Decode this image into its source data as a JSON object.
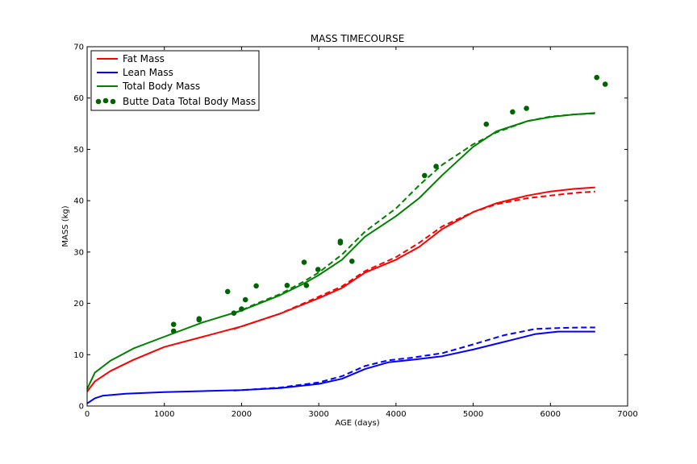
{
  "chart_data": {
    "type": "line",
    "title": "MASS TIMECOURSE",
    "xlabel": "AGE (days)",
    "ylabel": "MASS (kg)",
    "xlim": [
      0,
      7000
    ],
    "ylim": [
      0,
      70
    ],
    "xticks": [
      "0",
      "1000",
      "2000",
      "3000",
      "4000",
      "5000",
      "6000",
      "7000"
    ],
    "yticks": [
      "0",
      "10",
      "20",
      "30",
      "40",
      "50",
      "60",
      "70"
    ],
    "grid": false,
    "legend_position": "top-left",
    "legend": [
      {
        "label": "Fat Mass",
        "color": "#ff0000",
        "kind": "line"
      },
      {
        "label": "Lean Mass",
        "color": "#0000ff",
        "kind": "line"
      },
      {
        "label": "Total Body Mass",
        "color": "#008000",
        "kind": "line"
      },
      {
        "label": "Butte Data Total Body Mass",
        "color": "#006400",
        "kind": "points"
      }
    ],
    "series": [
      {
        "name": "Fat Mass",
        "color": "#ff0000",
        "style": "solid",
        "x": [
          0,
          100,
          300,
          600,
          1000,
          1500,
          2000,
          2500,
          3000,
          3300,
          3600,
          4000,
          4300,
          4600,
          5000,
          5300,
          5700,
          6000,
          6300,
          6580
        ],
        "y": [
          2.8,
          4.8,
          6.8,
          9.0,
          11.5,
          13.5,
          15.5,
          18.0,
          21.0,
          23.0,
          26.0,
          28.5,
          31.0,
          34.5,
          37.8,
          39.5,
          41.0,
          41.8,
          42.3,
          42.6
        ]
      },
      {
        "name": "Fat Mass (dashed)",
        "color": "#ff0000",
        "style": "dashed",
        "x": [
          1900,
          2500,
          3000,
          3300,
          3600,
          4000,
          4300,
          4600,
          5000,
          5300,
          5700,
          6000,
          6300,
          6580
        ],
        "y": [
          15.0,
          18.0,
          21.3,
          23.3,
          26.3,
          29.0,
          31.8,
          35.0,
          37.8,
          39.3,
          40.5,
          41.0,
          41.5,
          41.8
        ]
      },
      {
        "name": "Lean Mass",
        "color": "#0000ff",
        "style": "solid",
        "x": [
          0,
          100,
          200,
          500,
          1000,
          1500,
          2000,
          2500,
          3000,
          3300,
          3600,
          3900,
          4200,
          4600,
          5000,
          5400,
          5800,
          6100,
          6400,
          6580
        ],
        "y": [
          0.5,
          1.5,
          2.0,
          2.4,
          2.7,
          2.9,
          3.1,
          3.5,
          4.3,
          5.3,
          7.2,
          8.5,
          9.0,
          9.7,
          11.0,
          12.5,
          14.0,
          14.5,
          14.5,
          14.5
        ]
      },
      {
        "name": "Lean Mass (dashed)",
        "color": "#0000ff",
        "style": "dashed",
        "x": [
          1900,
          2500,
          3000,
          3300,
          3600,
          3900,
          4200,
          4600,
          5000,
          5400,
          5800,
          6100,
          6400,
          6580
        ],
        "y": [
          3.0,
          3.6,
          4.6,
          5.8,
          7.8,
          8.9,
          9.4,
          10.3,
          12.0,
          13.8,
          15.0,
          15.2,
          15.3,
          15.3
        ]
      },
      {
        "name": "Total Body Mass",
        "color": "#008000",
        "style": "solid",
        "x": [
          0,
          100,
          300,
          600,
          1000,
          1500,
          2000,
          2500,
          2800,
          3000,
          3300,
          3600,
          4000,
          4300,
          4600,
          5000,
          5300,
          5700,
          6000,
          6300,
          6580
        ],
        "y": [
          3.3,
          6.5,
          8.8,
          11.2,
          13.5,
          16.3,
          18.6,
          21.6,
          23.8,
          25.5,
          28.5,
          33.0,
          37.0,
          40.5,
          45.0,
          50.5,
          53.5,
          55.5,
          56.3,
          56.8,
          57.1
        ]
      },
      {
        "name": "Total Body Mass (dashed)",
        "color": "#008000",
        "style": "dashed",
        "x": [
          1900,
          2200,
          2500,
          2800,
          3000,
          3300,
          3600,
          4000,
          4300,
          4600,
          5000,
          5300,
          5700,
          6000,
          6300,
          6580
        ],
        "y": [
          18.0,
          20.0,
          21.8,
          24.2,
          26.0,
          29.5,
          34.0,
          38.5,
          43.0,
          47.0,
          51.0,
          53.3,
          55.5,
          56.4,
          56.8,
          57.0
        ]
      }
    ],
    "points": {
      "name": "Butte Data Total Body Mass",
      "color": "#006400",
      "x": [
        1120,
        1120,
        1450,
        1450,
        1820,
        1900,
        2000,
        2050,
        2190,
        2590,
        2810,
        2840,
        2990,
        3280,
        3280,
        3430,
        4370,
        4520,
        5170,
        5510,
        5690,
        6600,
        6710
      ],
      "y": [
        15.9,
        14.6,
        17.0,
        16.8,
        22.3,
        18.1,
        18.9,
        20.7,
        23.4,
        23.5,
        28.0,
        23.5,
        26.6,
        32.1,
        31.8,
        28.2,
        44.9,
        46.7,
        54.9,
        57.3,
        58.0,
        64.0,
        62.7
      ]
    }
  }
}
